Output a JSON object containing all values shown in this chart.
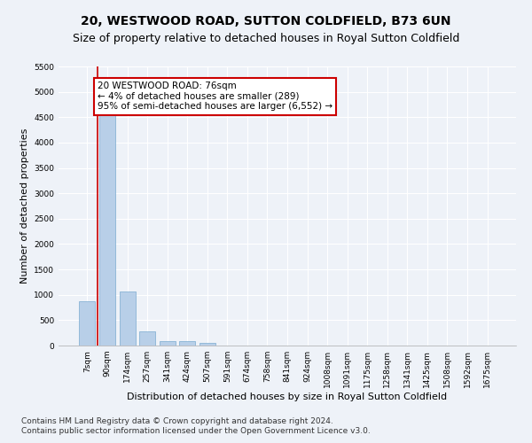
{
  "title": "20, WESTWOOD ROAD, SUTTON COLDFIELD, B73 6UN",
  "subtitle": "Size of property relative to detached houses in Royal Sutton Coldfield",
  "xlabel": "Distribution of detached houses by size in Royal Sutton Coldfield",
  "ylabel": "Number of detached properties",
  "categories": [
    "7sqm",
    "90sqm",
    "174sqm",
    "257sqm",
    "341sqm",
    "424sqm",
    "507sqm",
    "591sqm",
    "674sqm",
    "758sqm",
    "841sqm",
    "924sqm",
    "1008sqm",
    "1091sqm",
    "1175sqm",
    "1258sqm",
    "1341sqm",
    "1425sqm",
    "1508sqm",
    "1592sqm",
    "1675sqm"
  ],
  "values": [
    880,
    4560,
    1060,
    285,
    90,
    80,
    55,
    0,
    0,
    0,
    0,
    0,
    0,
    0,
    0,
    0,
    0,
    0,
    0,
    0,
    0
  ],
  "bar_color": "#b8cfe8",
  "bar_edge_color": "#7aaad0",
  "annotation_title": "20 WESTWOOD ROAD: 76sqm",
  "annotation_line1": "← 4% of detached houses are smaller (289)",
  "annotation_line2": "95% of semi-detached houses are larger (6,552) →",
  "annotation_box_color": "#ffffff",
  "annotation_box_edge": "#cc0000",
  "red_line_color": "#cc0000",
  "ylim": [
    0,
    5500
  ],
  "yticks": [
    0,
    500,
    1000,
    1500,
    2000,
    2500,
    3000,
    3500,
    4000,
    4500,
    5000,
    5500
  ],
  "footnote1": "Contains HM Land Registry data © Crown copyright and database right 2024.",
  "footnote2": "Contains public sector information licensed under the Open Government Licence v3.0.",
  "background_color": "#eef2f8",
  "plot_background": "#eef2f8",
  "title_fontsize": 10,
  "subtitle_fontsize": 9,
  "xlabel_fontsize": 8,
  "ylabel_fontsize": 8,
  "tick_fontsize": 6.5,
  "footnote_fontsize": 6.5,
  "annotation_fontsize": 7.5
}
